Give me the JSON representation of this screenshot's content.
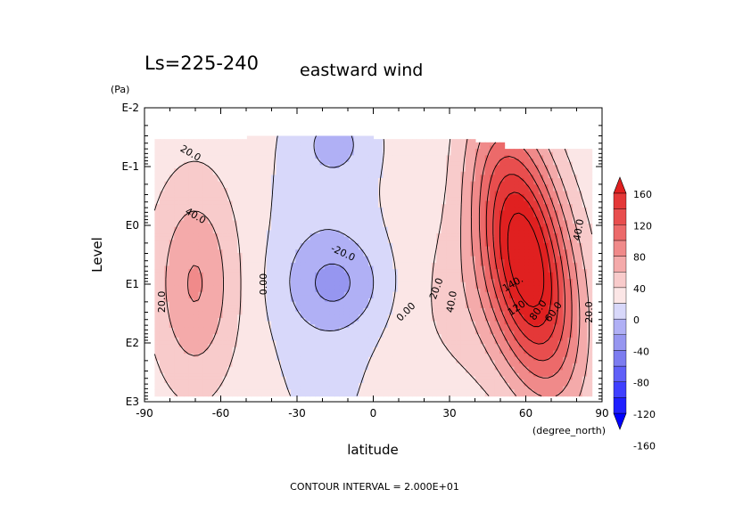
{
  "chart_data": {
    "type": "heatmap",
    "title": "Ls=225-240",
    "variable": "eastward wind",
    "xlabel": "latitude",
    "x_unit": "(degree_north)",
    "ylabel": "Level",
    "y_unit": "(Pa)",
    "xlim": [
      -90,
      90
    ],
    "x_ticks": [
      "-90",
      "-60",
      "-30",
      "0",
      "30",
      "60",
      "90"
    ],
    "y_scale": "log",
    "ylim": [
      1000,
      0.01
    ],
    "y_ticks": [
      "E-2",
      "E-1",
      "E0",
      "E1",
      "E2",
      "E3"
    ],
    "footer": "CONTOUR INTERVAL = 2.000E+01",
    "contour_interval": 20,
    "colorbar": {
      "labels": [
        "160",
        "120",
        "80",
        "40",
        "0",
        "-40",
        "-80",
        "-120",
        "-160"
      ],
      "levels": [
        -160,
        -140,
        -120,
        -100,
        -80,
        -60,
        -40,
        -20,
        0,
        20,
        40,
        60,
        80,
        100,
        120,
        140,
        160
      ],
      "colors": [
        "#0000ff",
        "#2020ff",
        "#4040ff",
        "#6060f8",
        "#7c7cf0",
        "#9696f0",
        "#b0b0f5",
        "#d8d8fa",
        "#fbe6e6",
        "#f8cbcb",
        "#f4aaaa",
        "#f08a8a",
        "#ec6a6a",
        "#e84e4e",
        "#e43838",
        "#e02020"
      ]
    },
    "contour_labels": [
      {
        "text": "20.0",
        "lat": -72,
        "p": 0.06,
        "rotate": 30
      },
      {
        "text": "40.0",
        "lat": -70,
        "p": 0.7,
        "rotate": 30
      },
      {
        "text": "20.0",
        "lat": -83,
        "p": 20,
        "rotate": -90
      },
      {
        "text": "0.00",
        "lat": -43,
        "p": 10,
        "rotate": -90
      },
      {
        "text": "-20.0",
        "lat": -12,
        "p": 3,
        "rotate": 25
      },
      {
        "text": "0.00",
        "lat": 13,
        "p": 30,
        "rotate": -45
      },
      {
        "text": "20.0",
        "lat": 25,
        "p": 12,
        "rotate": -70
      },
      {
        "text": "40.0",
        "lat": 31,
        "p": 20,
        "rotate": -80
      },
      {
        "text": "140.",
        "lat": 55,
        "p": 10,
        "rotate": -30
      },
      {
        "text": "120.",
        "lat": 57,
        "p": 25,
        "rotate": -35
      },
      {
        "text": "80.0",
        "lat": 65,
        "p": 28,
        "rotate": -55
      },
      {
        "text": "60.0",
        "lat": 71,
        "p": 30,
        "rotate": -55
      },
      {
        "text": "40.0",
        "lat": 81,
        "p": 1.2,
        "rotate": -80
      },
      {
        "text": "20.0",
        "lat": 85,
        "p": 30,
        "rotate": -90
      }
    ],
    "field_features": [
      {
        "type": "jet",
        "sign": "westerly",
        "lat_center": -70,
        "p_center": 10,
        "max": 50
      },
      {
        "type": "jet",
        "sign": "easterly",
        "lat_center": -14,
        "p_center": 10,
        "min": -35
      },
      {
        "type": "jet",
        "sign": "easterly",
        "lat_center": -15,
        "p_center": 0.04,
        "min": -25
      },
      {
        "type": "jet",
        "sign": "westerly",
        "lat_center": 62,
        "p_center": 0.5,
        "max": 160
      }
    ]
  }
}
